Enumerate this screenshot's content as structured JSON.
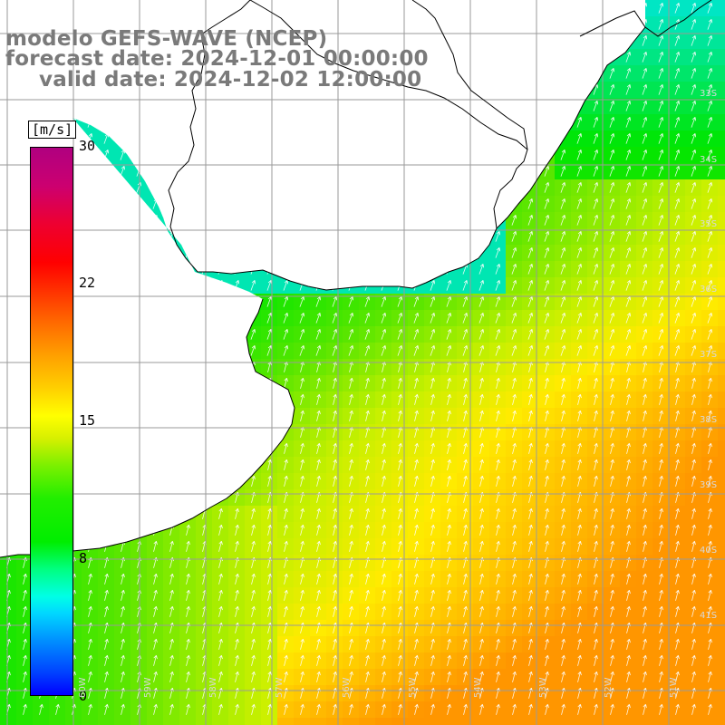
{
  "title": {
    "line1": "modelo GEFS-WAVE (NCEP)",
    "line2": "forecast date: 2024-12-01 00:00:00",
    "line3": "valid date: 2024-12-02 12:00:00"
  },
  "colorbar": {
    "unit": "[m/s]",
    "ticks": [
      "30",
      "22",
      "15",
      "8",
      "0"
    ],
    "colors": [
      "#0000ff",
      "#00ffff",
      "#00ee00",
      "#ffff00",
      "#ff6a00",
      "#ff0000",
      "#b00080"
    ]
  },
  "map": {
    "lat_labels": [
      "33S",
      "34S",
      "35S",
      "36S",
      "37S",
      "38S",
      "39S",
      "40S",
      "41S"
    ],
    "lon_labels": [
      "60W",
      "59W",
      "58W",
      "57W",
      "56W",
      "55W",
      "54W",
      "53W",
      "52W",
      "51W"
    ],
    "background_color": "#ffffff",
    "coastline_color": "#000000"
  }
}
